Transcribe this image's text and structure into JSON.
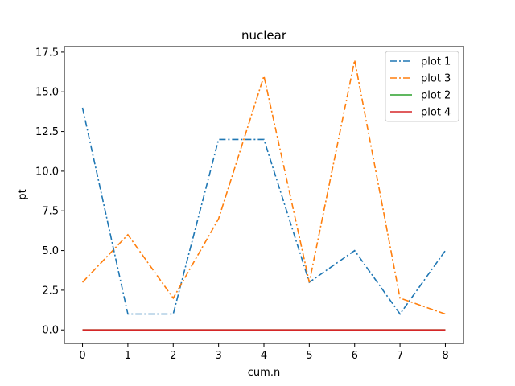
{
  "chart_data": {
    "type": "line",
    "title": "nuclear",
    "xlabel": "cum.n",
    "ylabel": "pt",
    "x": [
      0,
      1,
      2,
      3,
      4,
      5,
      6,
      7,
      8
    ],
    "xlim": [
      -0.4,
      8.4
    ],
    "ylim": [
      -0.85,
      17.85
    ],
    "xticks": [
      0,
      1,
      2,
      3,
      4,
      5,
      6,
      7,
      8
    ],
    "yticks": [
      0.0,
      2.5,
      5.0,
      7.5,
      10.0,
      12.5,
      15.0,
      17.5
    ],
    "ytick_labels": [
      "0.0",
      "2.5",
      "5.0",
      "7.5",
      "10.0",
      "12.5",
      "15.0",
      "17.5"
    ],
    "grid": false,
    "legend_position": "top-right",
    "series": [
      {
        "name": "plot 1",
        "color": "#1f77b4",
        "style": "dashdot",
        "values": [
          14,
          1,
          1,
          12,
          12,
          3,
          5,
          1,
          5
        ]
      },
      {
        "name": "plot 3",
        "color": "#ff7f0e",
        "style": "dashdot",
        "values": [
          3,
          6,
          2,
          7,
          16,
          3,
          17,
          2,
          1
        ]
      },
      {
        "name": "plot 2",
        "color": "#2ca02c",
        "style": "solid",
        "values": [
          0,
          0,
          0,
          0,
          0,
          0,
          0,
          0,
          0
        ]
      },
      {
        "name": "plot 4",
        "color": "#d62728",
        "style": "solid",
        "values": [
          0,
          0,
          0,
          0,
          0,
          0,
          0,
          0,
          0
        ]
      }
    ]
  }
}
